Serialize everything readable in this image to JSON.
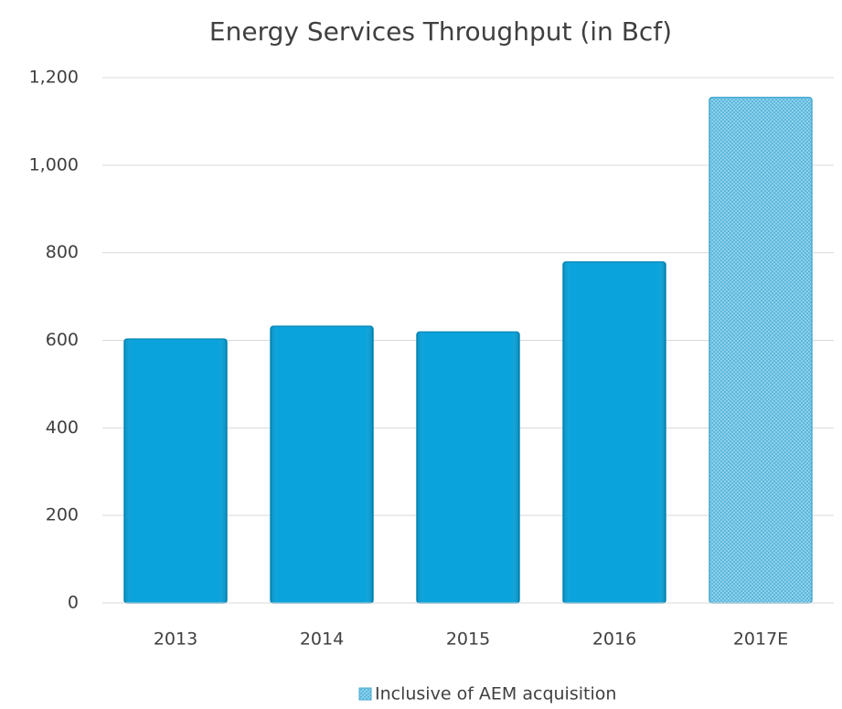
{
  "chart_data": {
    "type": "bar",
    "title": "Energy Services Throughput (in Bcf)",
    "categories": [
      "2013",
      "2014",
      "2015",
      "2016",
      "2017E"
    ],
    "values": [
      603,
      632,
      619,
      779,
      1155
    ],
    "hatched": [
      false,
      false,
      false,
      false,
      true
    ],
    "color": "#0aa3db",
    "legend": "Inclusive of AEM acquisition",
    "ylim": [
      0,
      1200
    ],
    "yticks": [
      0,
      200,
      400,
      600,
      800,
      {
        "value": 1000,
        "label": "1,000"
      },
      {
        "value": 1200,
        "label": "1,200"
      }
    ],
    "grid": true
  }
}
